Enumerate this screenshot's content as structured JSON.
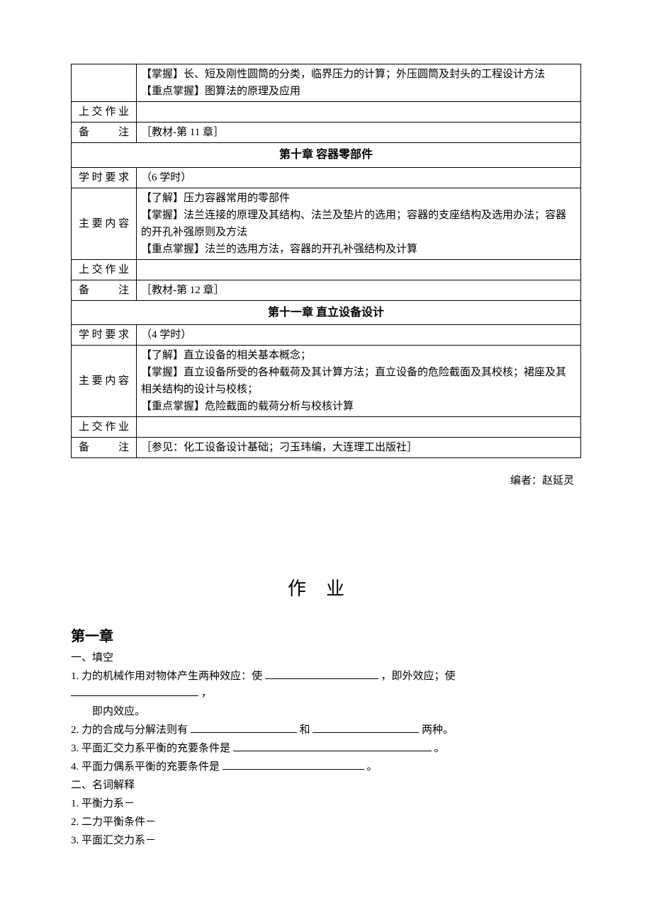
{
  "table": {
    "block0": {
      "content": "【掌握】长、短及刚性圆筒的分类，临界压力的计算；外压圆筒及封头的工程设计方法\n【重点掌握】图算法的原理及应用",
      "assign_label": "上交作业",
      "assign_val": "",
      "note_label": "备　　注",
      "note_val": "［教材-第 11 章］"
    },
    "ch10": {
      "title": "第十章  容器零部件",
      "hours_label": "学时要求",
      "hours_val": "（6 学时）",
      "content_label": "主要内容",
      "content_val": "【了解】压力容器常用的零部件\n【掌握】法兰连接的原理及其结构、法兰及垫片的选用；容器的支座结构及选用办法；容器的开孔补强原则及方法\n【重点掌握】法兰的选用方法，容器的开孔补强结构及计算",
      "assign_label": "上交作业",
      "assign_val": "",
      "note_label": "备　　注",
      "note_val": "［教材-第 12 章］"
    },
    "ch11": {
      "title": "第十一章  直立设备设计",
      "hours_label": "学时要求",
      "hours_val": "（4 学时）",
      "content_label": "主要内容",
      "content_val": "【了解】直立设备的相关基本概念；\n【掌握】直立设备所受的各种载荷及其计算方法；直立设备的危险截面及其校核；裙座及其相关结构的设计与校核；\n【重点掌握】危险截面的载荷分析与校核计算",
      "assign_label": "上交作业",
      "assign_val": "",
      "note_label": "备　　注",
      "note_val": "［参见：化工设备设计基础；刁玉玮编，大连理工出版社］"
    }
  },
  "author": "编者：赵延灵",
  "homework": {
    "title": "作业",
    "chapter_head": "第一章",
    "sec1_head": "一、填空",
    "q1_a": "1. 力的机械作用对物体产生两种效应：使",
    "q1_b": "，即外效应；使",
    "q1_c": "，",
    "q1_d": "即内效应。",
    "q2_a": "2. 力的合成与分解法则有",
    "q2_b": "和",
    "q2_c": "两种。",
    "q3_a": "3. 平面汇交力系平衡的充要条件是",
    "q3_b": "。",
    "q4_a": "4. 平面力偶系平衡的充要条件是",
    "q4_b": "。",
    "sec2_head": "二、名词解释",
    "t1": "1. 平衡力系－",
    "t2": "2. 二力平衡条件－",
    "t3": "3. 平面汇交力系－"
  },
  "colors": {
    "text": "#000000",
    "background": "#ffffff",
    "border": "#000000"
  },
  "blank_widths": {
    "w1": 160,
    "w2": 180,
    "w3": 150,
    "w4": 150,
    "w5": 280,
    "w6": 200
  }
}
